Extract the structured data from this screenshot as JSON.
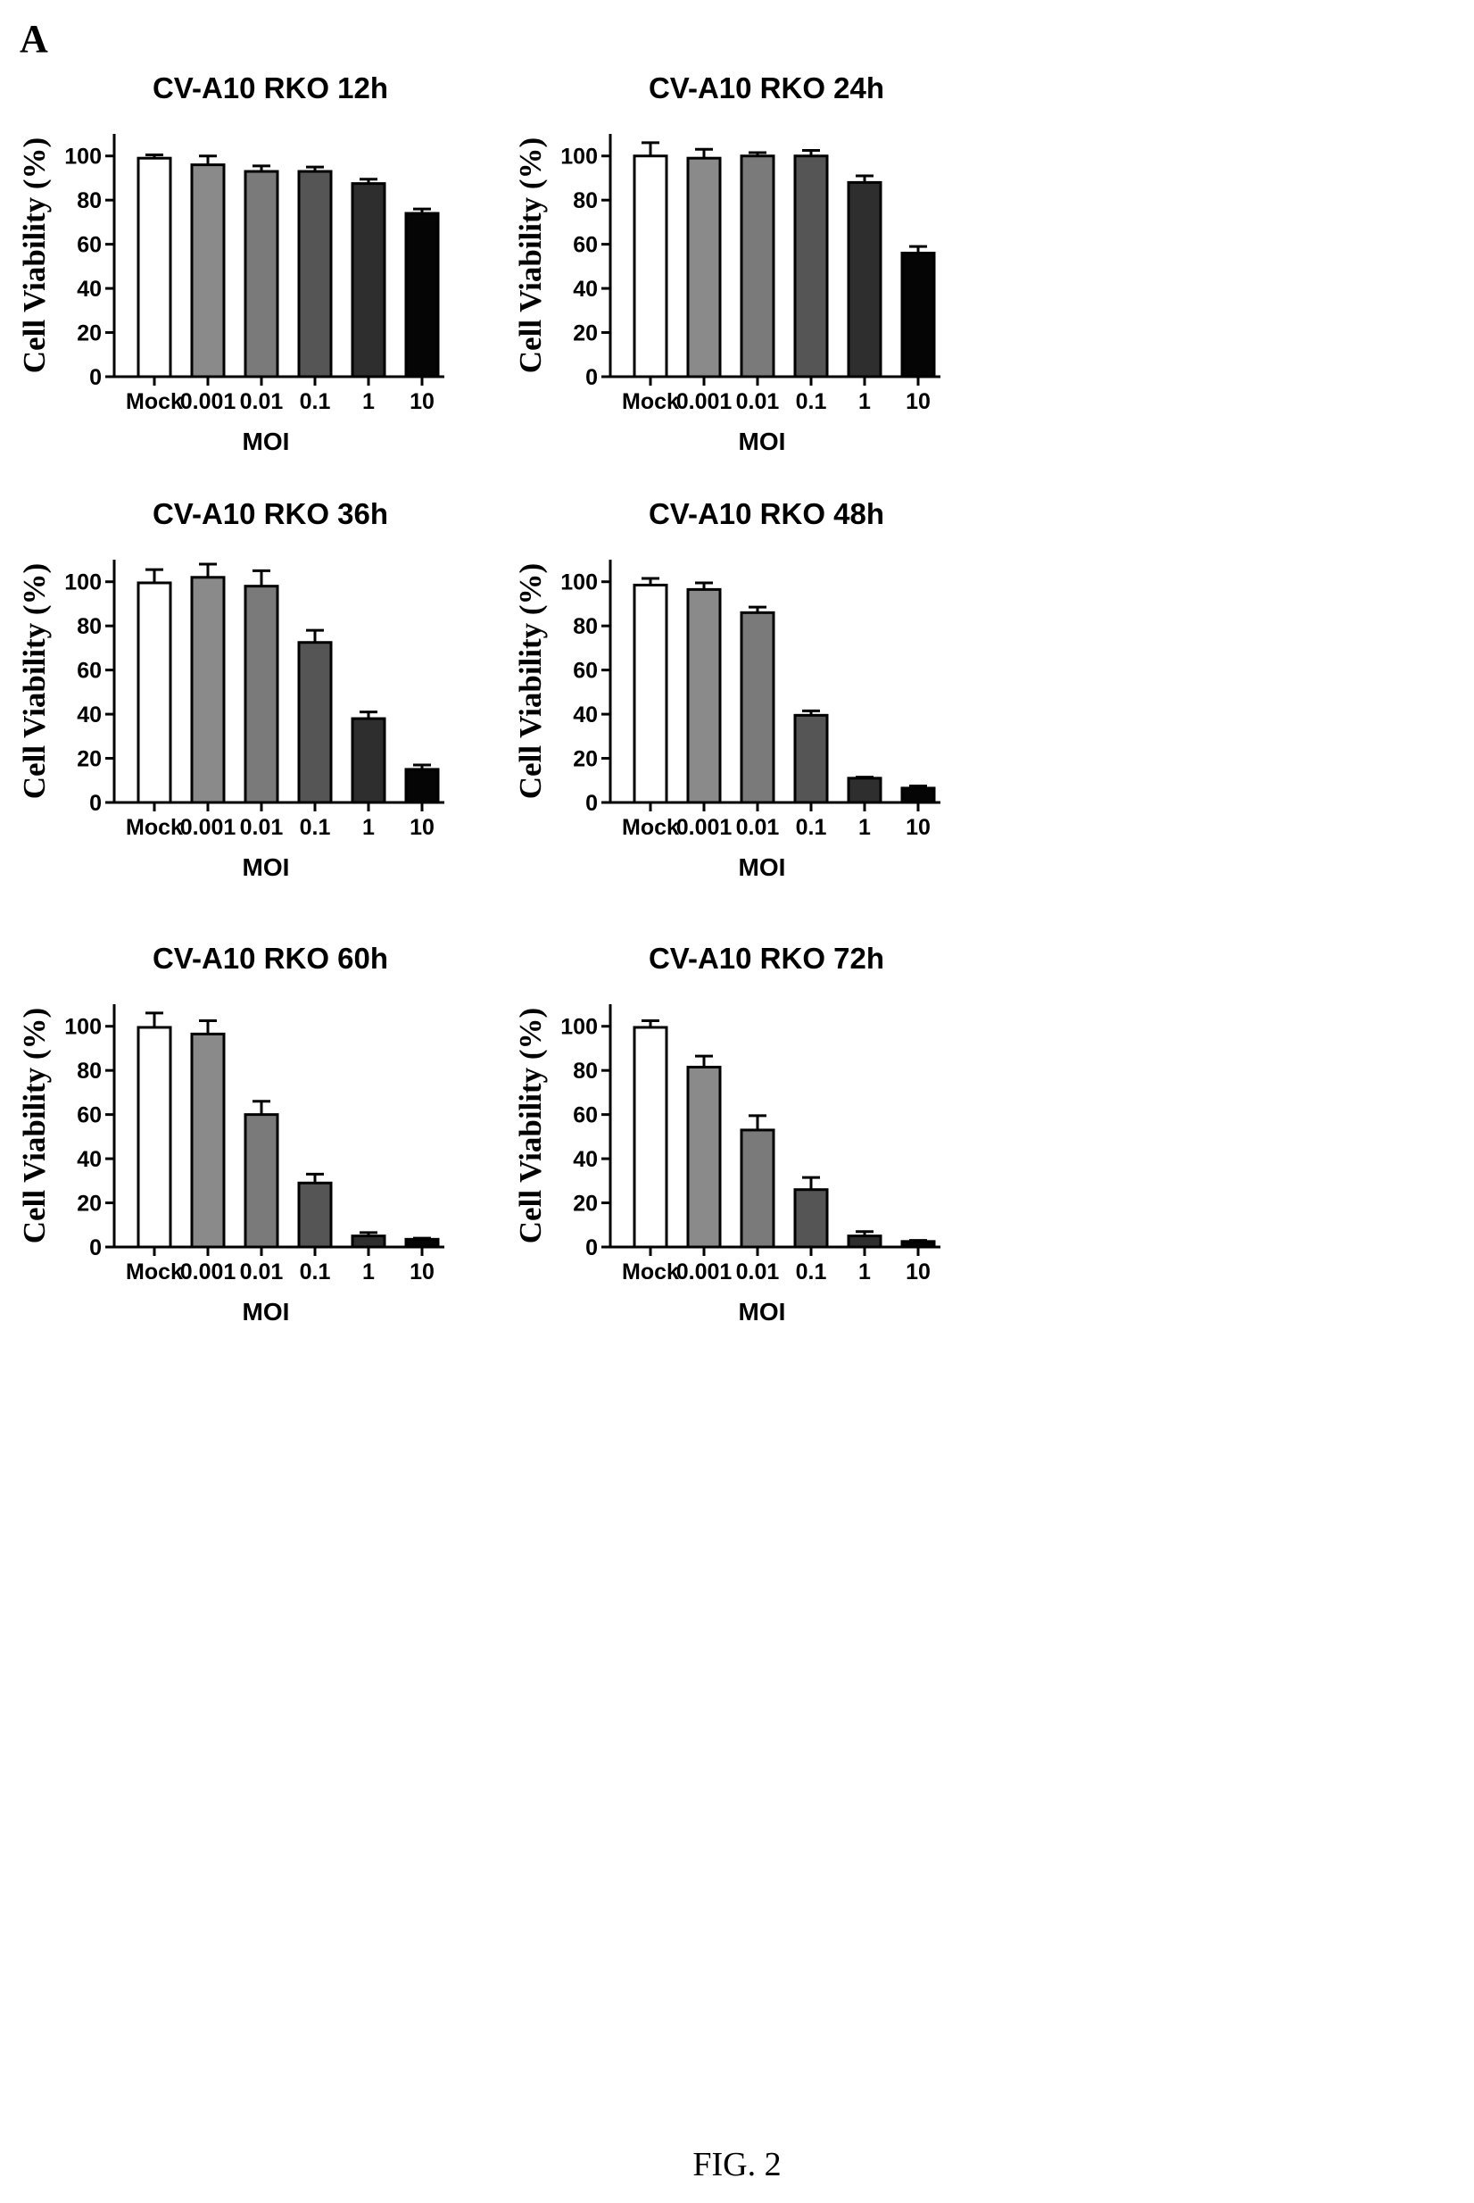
{
  "figure": {
    "panel_label": "A",
    "caption": "FIG. 2"
  },
  "colors": {
    "bar_fills": [
      "#ffffff",
      "#8a8a8a",
      "#7a7a7a",
      "#555555",
      "#2e2e2e",
      "#050505"
    ],
    "stroke": "#000000"
  },
  "chart_data": [
    {
      "type": "bar",
      "title": "CV-A10 RKO 12h",
      "xlabel": "MOI",
      "ylabel": "Cell Viability (%)",
      "ylim": [
        0,
        110
      ],
      "yticks": [
        0,
        20,
        40,
        60,
        80,
        100
      ],
      "categories": [
        "Mock",
        "0.001",
        "0.01",
        "0.1",
        "1",
        "10"
      ],
      "values": [
        99,
        96,
        93,
        93,
        87.5,
        74
      ],
      "errors": [
        1.5,
        4,
        2.5,
        2,
        2,
        2
      ]
    },
    {
      "type": "bar",
      "title": "CV-A10 RKO 24h",
      "xlabel": "MOI",
      "ylabel": "Cell Viability (%)",
      "ylim": [
        0,
        110
      ],
      "yticks": [
        0,
        20,
        40,
        60,
        80,
        100
      ],
      "categories": [
        "Mock",
        "0.001",
        "0.01",
        "0.1",
        "1",
        "10"
      ],
      "values": [
        100,
        99,
        100,
        100,
        88,
        56
      ],
      "errors": [
        6,
        4,
        1.5,
        2.5,
        3,
        3
      ]
    },
    {
      "type": "bar",
      "title": "CV-A10 RKO 36h",
      "xlabel": "MOI",
      "ylabel": "Cell Viability (%)",
      "ylim": [
        0,
        110
      ],
      "yticks": [
        0,
        20,
        40,
        60,
        80,
        100
      ],
      "categories": [
        "Mock",
        "0.001",
        "0.01",
        "0.1",
        "1",
        "10"
      ],
      "values": [
        99.5,
        102,
        98,
        72.5,
        38,
        15
      ],
      "errors": [
        6,
        6,
        7,
        5.5,
        3,
        2
      ]
    },
    {
      "type": "bar",
      "title": "CV-A10 RKO 48h",
      "xlabel": "MOI",
      "ylabel": "Cell Viability (%)",
      "ylim": [
        0,
        110
      ],
      "yticks": [
        0,
        20,
        40,
        60,
        80,
        100
      ],
      "categories": [
        "Mock",
        "0.001",
        "0.01",
        "0.1",
        "1",
        "10"
      ],
      "values": [
        98.5,
        96.5,
        86,
        39.5,
        11,
        6.5
      ],
      "errors": [
        3,
        3,
        2.5,
        2,
        0.5,
        1
      ]
    },
    {
      "type": "bar",
      "title": "CV-A10 RKO 60h",
      "xlabel": "MOI",
      "ylabel": "Cell Viability (%)",
      "ylim": [
        0,
        110
      ],
      "yticks": [
        0,
        20,
        40,
        60,
        80,
        100
      ],
      "categories": [
        "Mock",
        "0.001",
        "0.01",
        "0.1",
        "1",
        "10"
      ],
      "values": [
        99.5,
        96.5,
        60,
        29,
        5,
        3.5
      ],
      "errors": [
        6.5,
        6,
        6,
        4,
        1.5,
        0.5
      ]
    },
    {
      "type": "bar",
      "title": "CV-A10 RKO 72h",
      "xlabel": "MOI",
      "ylabel": "Cell Viability (%)",
      "ylim": [
        0,
        110
      ],
      "yticks": [
        0,
        20,
        40,
        60,
        80,
        100
      ],
      "categories": [
        "Mock",
        "0.001",
        "0.01",
        "0.1",
        "1",
        "10"
      ],
      "values": [
        99.5,
        81.5,
        53,
        26,
        5,
        2.5
      ],
      "errors": [
        3,
        5,
        6.5,
        5.5,
        2,
        0.5
      ]
    }
  ]
}
